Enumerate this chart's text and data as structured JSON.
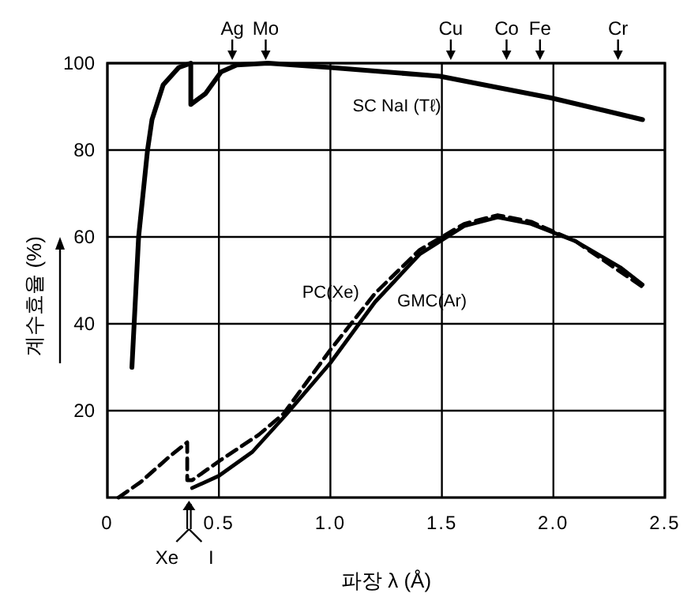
{
  "chart_data": {
    "type": "line",
    "xlabel": "파장 λ (Å)",
    "ylabel": "계수효율 (%)",
    "xlim": [
      0,
      2.5
    ],
    "ylim": [
      0,
      100
    ],
    "xticks": [
      0,
      {
        "value": 0.5,
        "label": "0.5"
      },
      {
        "value": 1.0,
        "label": "1.0"
      },
      {
        "value": 1.5,
        "label": "1.5"
      },
      {
        "value": 2.0,
        "label": "2.0"
      },
      {
        "value": 2.5,
        "label": "2.5"
      }
    ],
    "yticks": [
      20,
      40,
      60,
      80,
      100
    ],
    "grid": true,
    "ref_lines": [
      {
        "axis": "x",
        "value": 0.56,
        "label": "Ag"
      },
      {
        "axis": "x",
        "value": 0.71,
        "label": "Mo"
      },
      {
        "axis": "x",
        "value": 1.54,
        "label": "Cu"
      },
      {
        "axis": "x",
        "value": 1.79,
        "label": "Co"
      },
      {
        "axis": "x",
        "value": 1.94,
        "label": "Fe"
      },
      {
        "axis": "x",
        "value": 2.29,
        "label": "Cr"
      },
      {
        "axis": "x",
        "value": 0.358,
        "label": "Xe"
      },
      {
        "axis": "x",
        "value": 0.374,
        "label": "I"
      }
    ],
    "series": [
      {
        "name": "SC  NaI (Tℓ)",
        "color": "#000000",
        "line_style": "solid",
        "x": [
          0.11,
          0.14,
          0.18,
          0.2,
          0.25,
          0.32,
          0.374,
          0.374,
          0.44,
          0.51,
          0.58,
          0.72,
          1.0,
          1.49,
          1.99,
          2.4
        ],
        "values": [
          30,
          60,
          80,
          87,
          95,
          99,
          100,
          90.5,
          93,
          98,
          99.6,
          100,
          99,
          97,
          92,
          87
        ]
      },
      {
        "name": "PC(Xe)",
        "color": "#000000",
        "line_style": "dashed",
        "x": [
          0.05,
          0.15,
          0.28,
          0.358,
          0.358,
          0.38,
          0.51,
          0.68,
          0.79,
          0.9,
          1.0,
          1.2,
          1.4,
          1.6,
          1.75,
          1.9,
          2.1,
          2.3,
          2.4
        ],
        "values": [
          0,
          3.6,
          9.5,
          12.7,
          4,
          4,
          8.7,
          14.5,
          19.3,
          27,
          34,
          47,
          57,
          63,
          65,
          63.5,
          59,
          52,
          48.5
        ]
      },
      {
        "name": "GMC(Ar)",
        "color": "#000000",
        "line_style": "solid",
        "x": [
          0.38,
          0.5,
          0.65,
          0.8,
          1.0,
          1.2,
          1.4,
          1.6,
          1.75,
          1.9,
          2.1,
          2.3,
          2.4
        ],
        "values": [
          2.2,
          5,
          10.5,
          19,
          31,
          45,
          56,
          62.5,
          64.5,
          63,
          59,
          53,
          49
        ]
      }
    ]
  }
}
